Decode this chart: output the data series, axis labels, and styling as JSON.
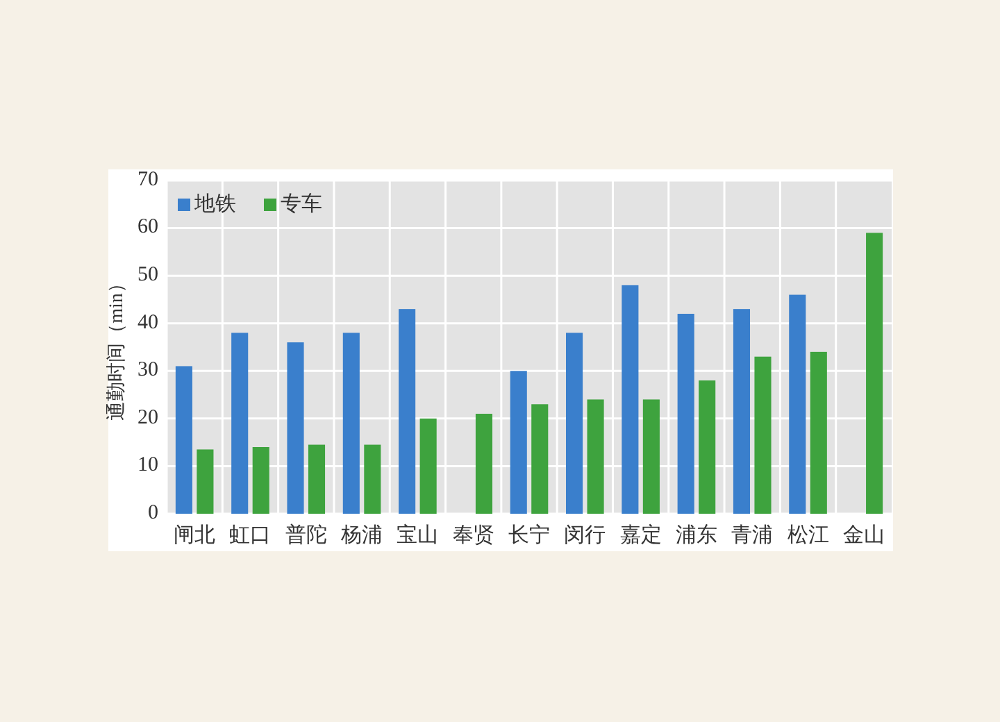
{
  "chart_data": {
    "type": "bar",
    "ylabel": "通勤时间（min）",
    "categories": [
      "闸北",
      "虹口",
      "普陀",
      "杨浦",
      "宝山",
      "奉贤",
      "长宁",
      "闵行",
      "嘉定",
      "浦东",
      "青浦",
      "松江",
      "金山"
    ],
    "series": [
      {
        "name": "地铁",
        "color": "#3a7fcc",
        "values": [
          31,
          38,
          36,
          38,
          43,
          null,
          30,
          38,
          48,
          42,
          43,
          46,
          null
        ]
      },
      {
        "name": "专车",
        "color": "#3ea33e",
        "values": [
          13.5,
          14,
          14.5,
          14.5,
          20,
          21,
          23,
          24,
          24,
          28,
          33,
          34,
          59
        ]
      }
    ],
    "ylim": [
      0,
      70
    ],
    "yticks": [
      0,
      10,
      20,
      30,
      40,
      50,
      60,
      70
    ],
    "grid": true,
    "legend": "top left"
  }
}
